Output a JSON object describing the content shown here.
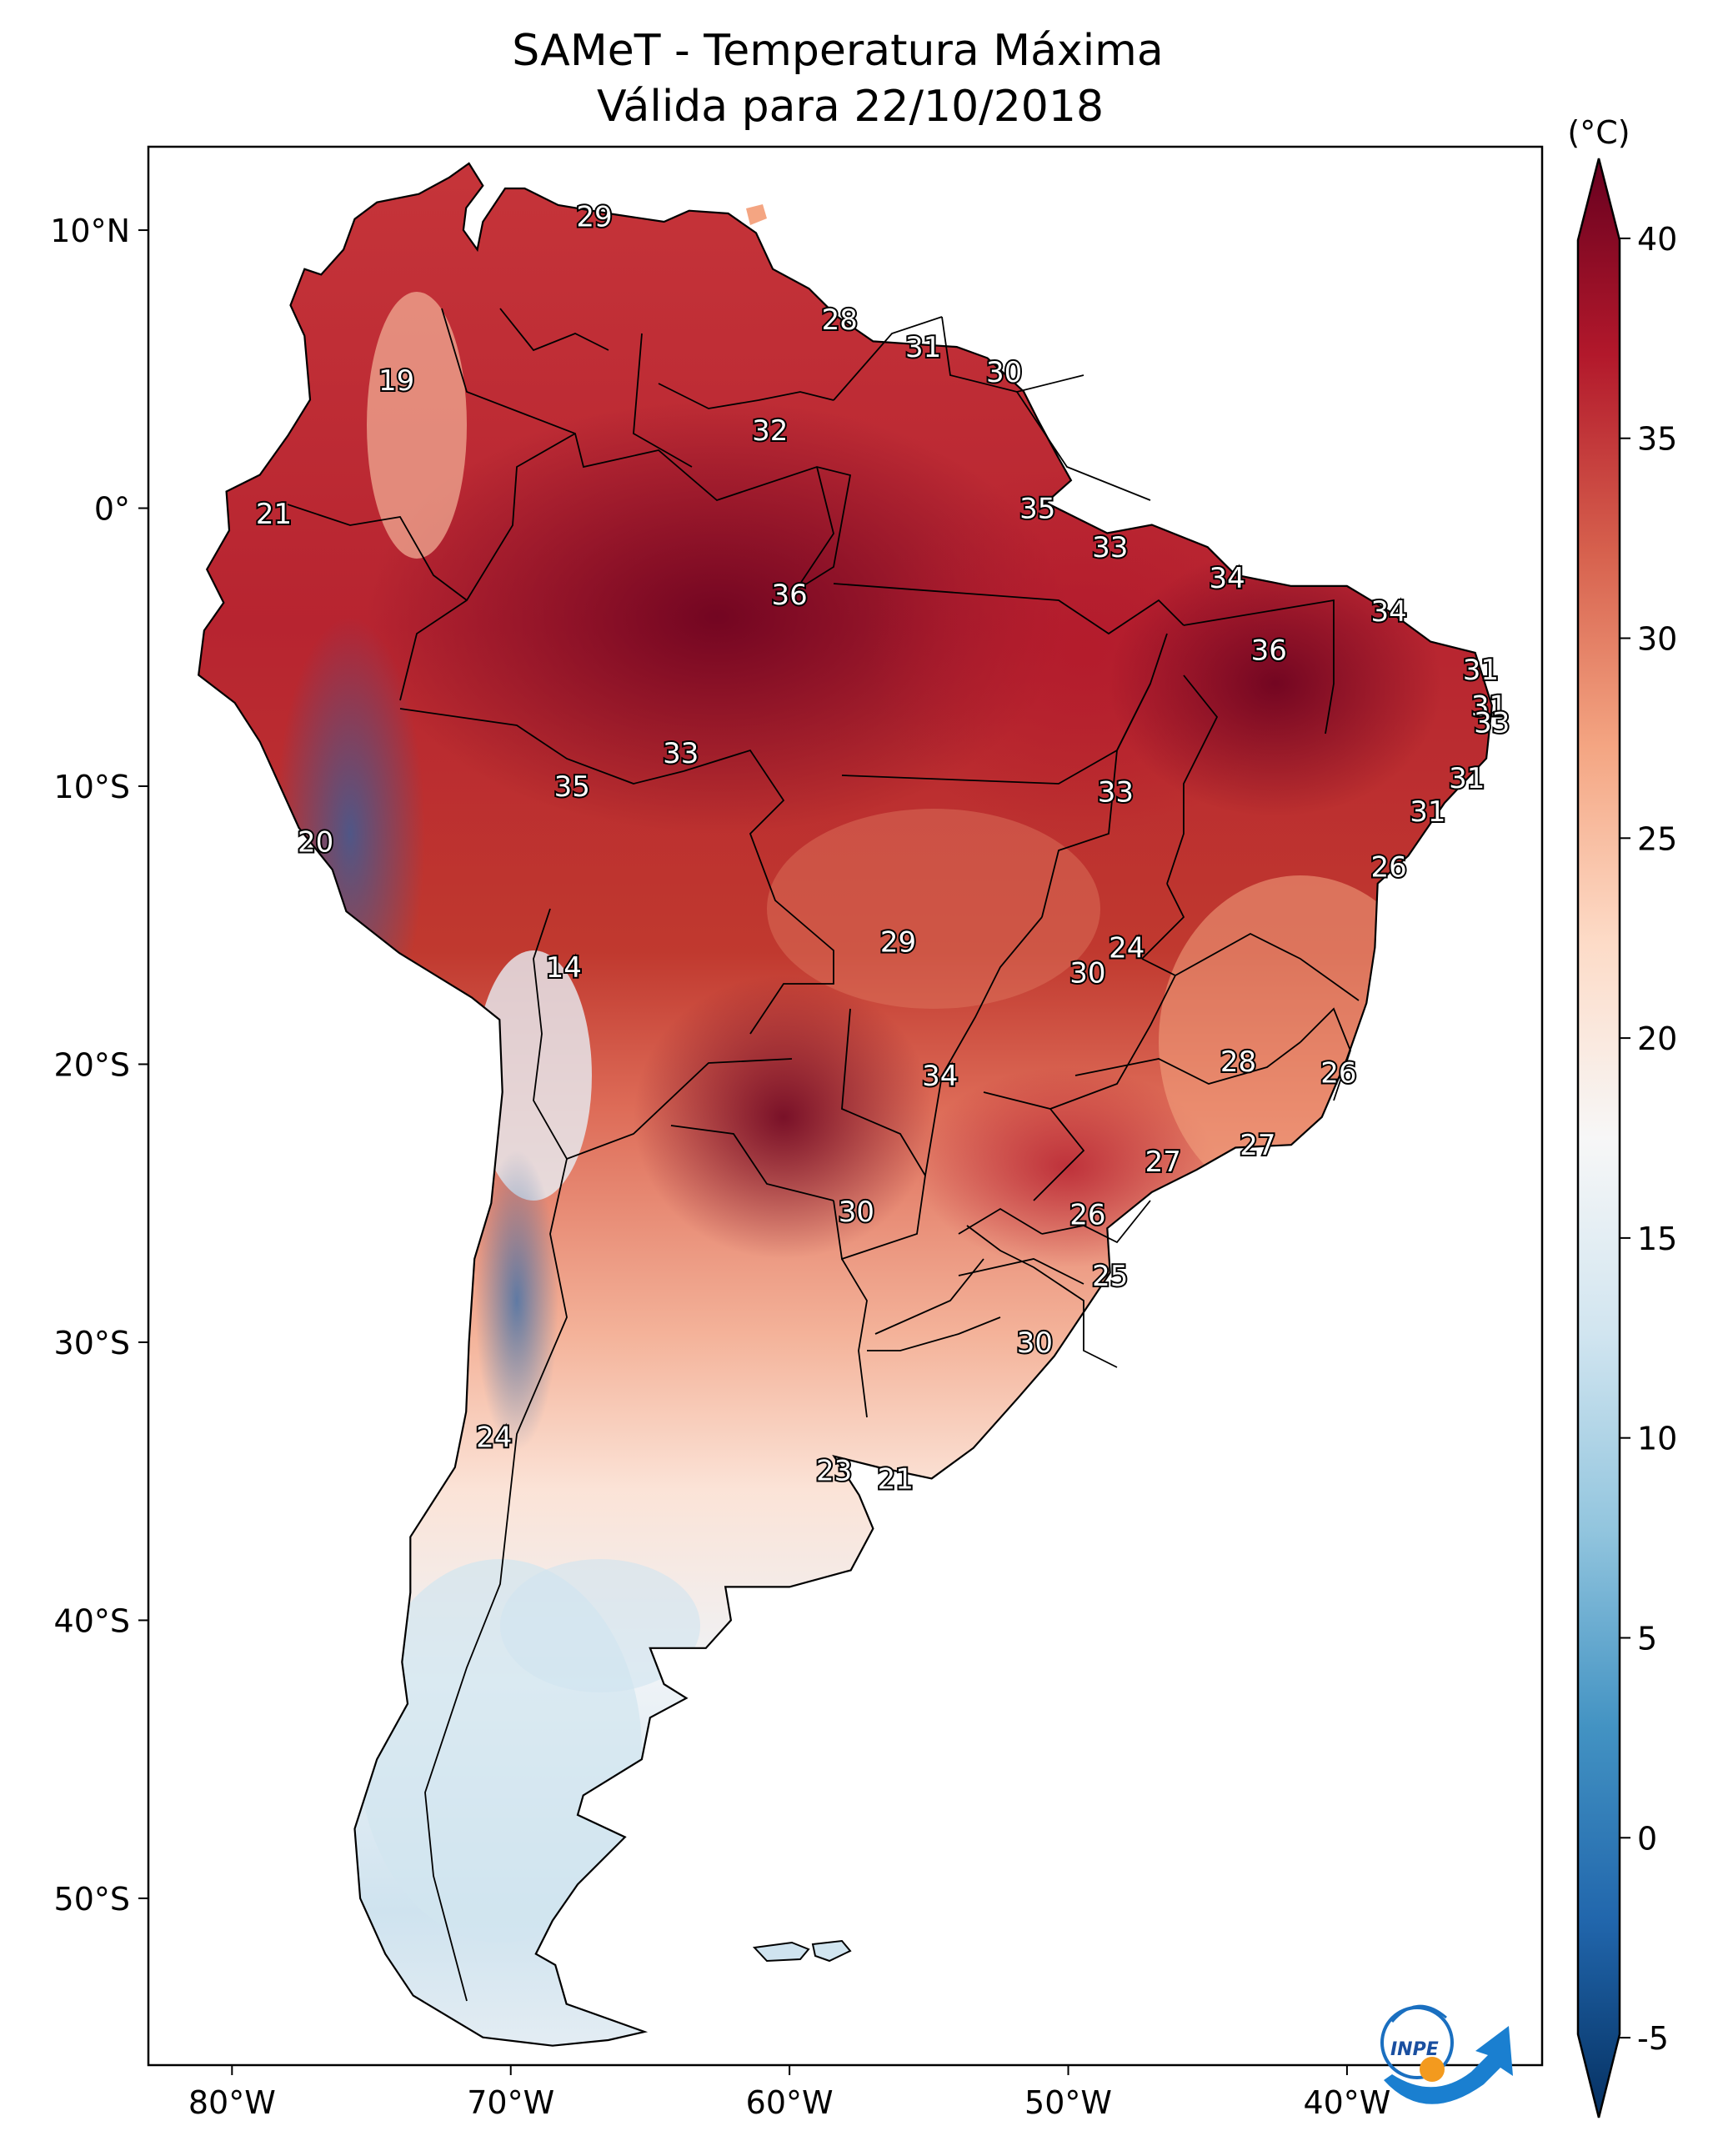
{
  "title_line1": "SAMeT - Temperatura Máxima",
  "title_line2": "Válida para 22/10/2018",
  "colorbar": {
    "unit": "(°C)",
    "min": -7,
    "max": 42,
    "ticks": [
      {
        "value": 40,
        "label": "40"
      },
      {
        "value": 35,
        "label": "35"
      },
      {
        "value": 30,
        "label": "30"
      },
      {
        "value": 25,
        "label": "25"
      },
      {
        "value": 20,
        "label": "20"
      },
      {
        "value": 15,
        "label": "15"
      },
      {
        "value": 10,
        "label": "10"
      },
      {
        "value": 5,
        "label": "5"
      },
      {
        "value": 0,
        "label": "0"
      },
      {
        "value": -5,
        "label": "-5"
      }
    ],
    "colors": [
      "#053061",
      "#2166ac",
      "#4393c3",
      "#92c5de",
      "#d1e5f0",
      "#f7f7f7",
      "#fddbc7",
      "#f4a582",
      "#d6604d",
      "#b2182b",
      "#67001f"
    ]
  },
  "axes": {
    "lon_min": -83,
    "lon_max": -33,
    "lat_min": -56,
    "lat_max": 13,
    "lon_ticks": [
      {
        "value": -80,
        "label": "80°W"
      },
      {
        "value": -70,
        "label": "70°W"
      },
      {
        "value": -60,
        "label": "60°W"
      },
      {
        "value": -50,
        "label": "50°W"
      },
      {
        "value": -40,
        "label": "40°W"
      }
    ],
    "lat_ticks": [
      {
        "value": 10,
        "label": "10°N"
      },
      {
        "value": 0,
        "label": "0°"
      },
      {
        "value": -10,
        "label": "10°S"
      },
      {
        "value": -20,
        "label": "20°S"
      },
      {
        "value": -30,
        "label": "30°S"
      },
      {
        "value": -40,
        "label": "40°S"
      },
      {
        "value": -50,
        "label": "50°S"
      }
    ]
  },
  "city_labels": [
    {
      "label": "29",
      "lon": -67,
      "lat": 10.5
    },
    {
      "label": "19",
      "lon": -74.1,
      "lat": 4.6
    },
    {
      "label": "28",
      "lon": -58.2,
      "lat": 6.8
    },
    {
      "label": "31",
      "lon": -55.2,
      "lat": 5.8
    },
    {
      "label": "30",
      "lon": -52.3,
      "lat": 4.9
    },
    {
      "label": "32",
      "lon": -60.7,
      "lat": 2.8
    },
    {
      "label": "21",
      "lon": -78.5,
      "lat": -0.2
    },
    {
      "label": "35",
      "lon": -51.1,
      "lat": 0.0
    },
    {
      "label": "33",
      "lon": -48.5,
      "lat": -1.4
    },
    {
      "label": "36",
      "lon": -60.0,
      "lat": -3.1
    },
    {
      "label": "34",
      "lon": -44.3,
      "lat": -2.5
    },
    {
      "label": "34",
      "lon": -38.5,
      "lat": -3.7
    },
    {
      "label": "36",
      "lon": -42.8,
      "lat": -5.1
    },
    {
      "label": "31",
      "lon": -35.2,
      "lat": -5.8
    },
    {
      "label": "31",
      "lon": -34.9,
      "lat": -7.1
    },
    {
      "label": "33",
      "lon": -34.8,
      "lat": -7.7
    },
    {
      "label": "33",
      "lon": -63.9,
      "lat": -8.8
    },
    {
      "label": "35",
      "lon": -67.8,
      "lat": -10.0
    },
    {
      "label": "33",
      "lon": -48.3,
      "lat": -10.2
    },
    {
      "label": "31",
      "lon": -35.7,
      "lat": -9.7
    },
    {
      "label": "31",
      "lon": -37.1,
      "lat": -10.9
    },
    {
      "label": "20",
      "lon": -77.0,
      "lat": -12.0
    },
    {
      "label": "26",
      "lon": -38.5,
      "lat": -12.9
    },
    {
      "label": "24",
      "lon": -47.9,
      "lat": -15.8
    },
    {
      "label": "29",
      "lon": -56.1,
      "lat": -15.6
    },
    {
      "label": "30",
      "lon": -49.3,
      "lat": -16.7
    },
    {
      "label": "14",
      "lon": -68.1,
      "lat": -16.5
    },
    {
      "label": "28",
      "lon": -43.9,
      "lat": -19.9
    },
    {
      "label": "26",
      "lon": -40.3,
      "lat": -20.3
    },
    {
      "label": "34",
      "lon": -54.6,
      "lat": -20.4
    },
    {
      "label": "27",
      "lon": -46.6,
      "lat": -23.5
    },
    {
      "label": "27",
      "lon": -43.2,
      "lat": -22.9
    },
    {
      "label": "30",
      "lon": -57.6,
      "lat": -25.3
    },
    {
      "label": "26",
      "lon": -49.3,
      "lat": -25.4
    },
    {
      "label": "25",
      "lon": -48.5,
      "lat": -27.6
    },
    {
      "label": "30",
      "lon": -51.2,
      "lat": -30.0
    },
    {
      "label": "24",
      "lon": -70.6,
      "lat": -33.4
    },
    {
      "label": "23",
      "lon": -58.4,
      "lat": -34.6
    },
    {
      "label": "21",
      "lon": -56.2,
      "lat": -34.9
    }
  ],
  "logo": {
    "text": "INPE"
  }
}
